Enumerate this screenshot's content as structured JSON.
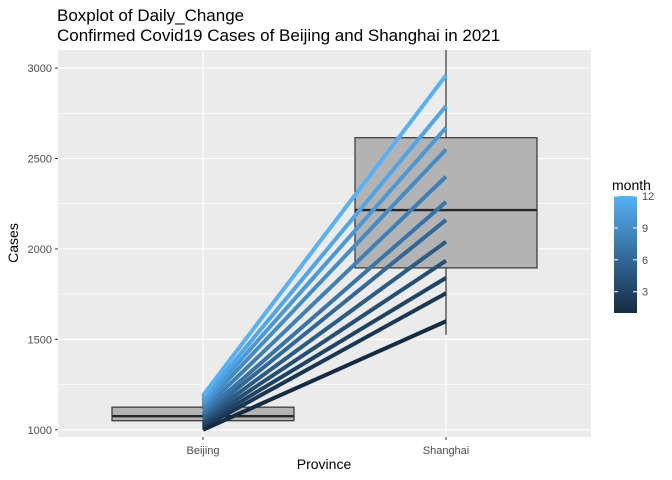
{
  "chart_data": {
    "type": "boxplot",
    "title": "Boxplot of Daily_Change",
    "subtitle": "Confirmed Covid19 Cases of Beijing and Shanghai in 2021",
    "xlabel": "Province",
    "ylabel": "Cases",
    "categories": [
      "Beijing",
      "Shanghai"
    ],
    "ylim": [
      960,
      3100
    ],
    "yticks": [
      1000,
      1500,
      2000,
      2500,
      3000
    ],
    "grid": true,
    "boxes": [
      {
        "category": "Beijing",
        "min": 1000,
        "q1": 1050,
        "median": 1075,
        "q3": 1125,
        "max": 1200
      },
      {
        "category": "Shanghai",
        "min": 1525,
        "q1": 1895,
        "median": 2215,
        "q3": 2615,
        "max": 3100
      }
    ],
    "color_legend": {
      "title": "month",
      "min": 1,
      "max": 12,
      "ticks": [
        3,
        6,
        9,
        12
      ],
      "low_color": "#132b43",
      "high_color": "#56b1f7"
    },
    "series": [
      {
        "month": 1,
        "values": [
          1000,
          1600
        ]
      },
      {
        "month": 2,
        "values": [
          1015,
          1755
        ]
      },
      {
        "month": 3,
        "values": [
          1030,
          1840
        ]
      },
      {
        "month": 4,
        "values": [
          1045,
          1935
        ]
      },
      {
        "month": 5,
        "values": [
          1060,
          2040
        ]
      },
      {
        "month": 6,
        "values": [
          1075,
          2160
        ]
      },
      {
        "month": 7,
        "values": [
          1090,
          2260
        ]
      },
      {
        "month": 8,
        "values": [
          1110,
          2400
        ]
      },
      {
        "month": 9,
        "values": [
          1130,
          2550
        ]
      },
      {
        "month": 10,
        "values": [
          1150,
          2670
        ]
      },
      {
        "month": 11,
        "values": [
          1170,
          2790
        ]
      },
      {
        "month": 12,
        "values": [
          1190,
          2960
        ]
      }
    ]
  }
}
